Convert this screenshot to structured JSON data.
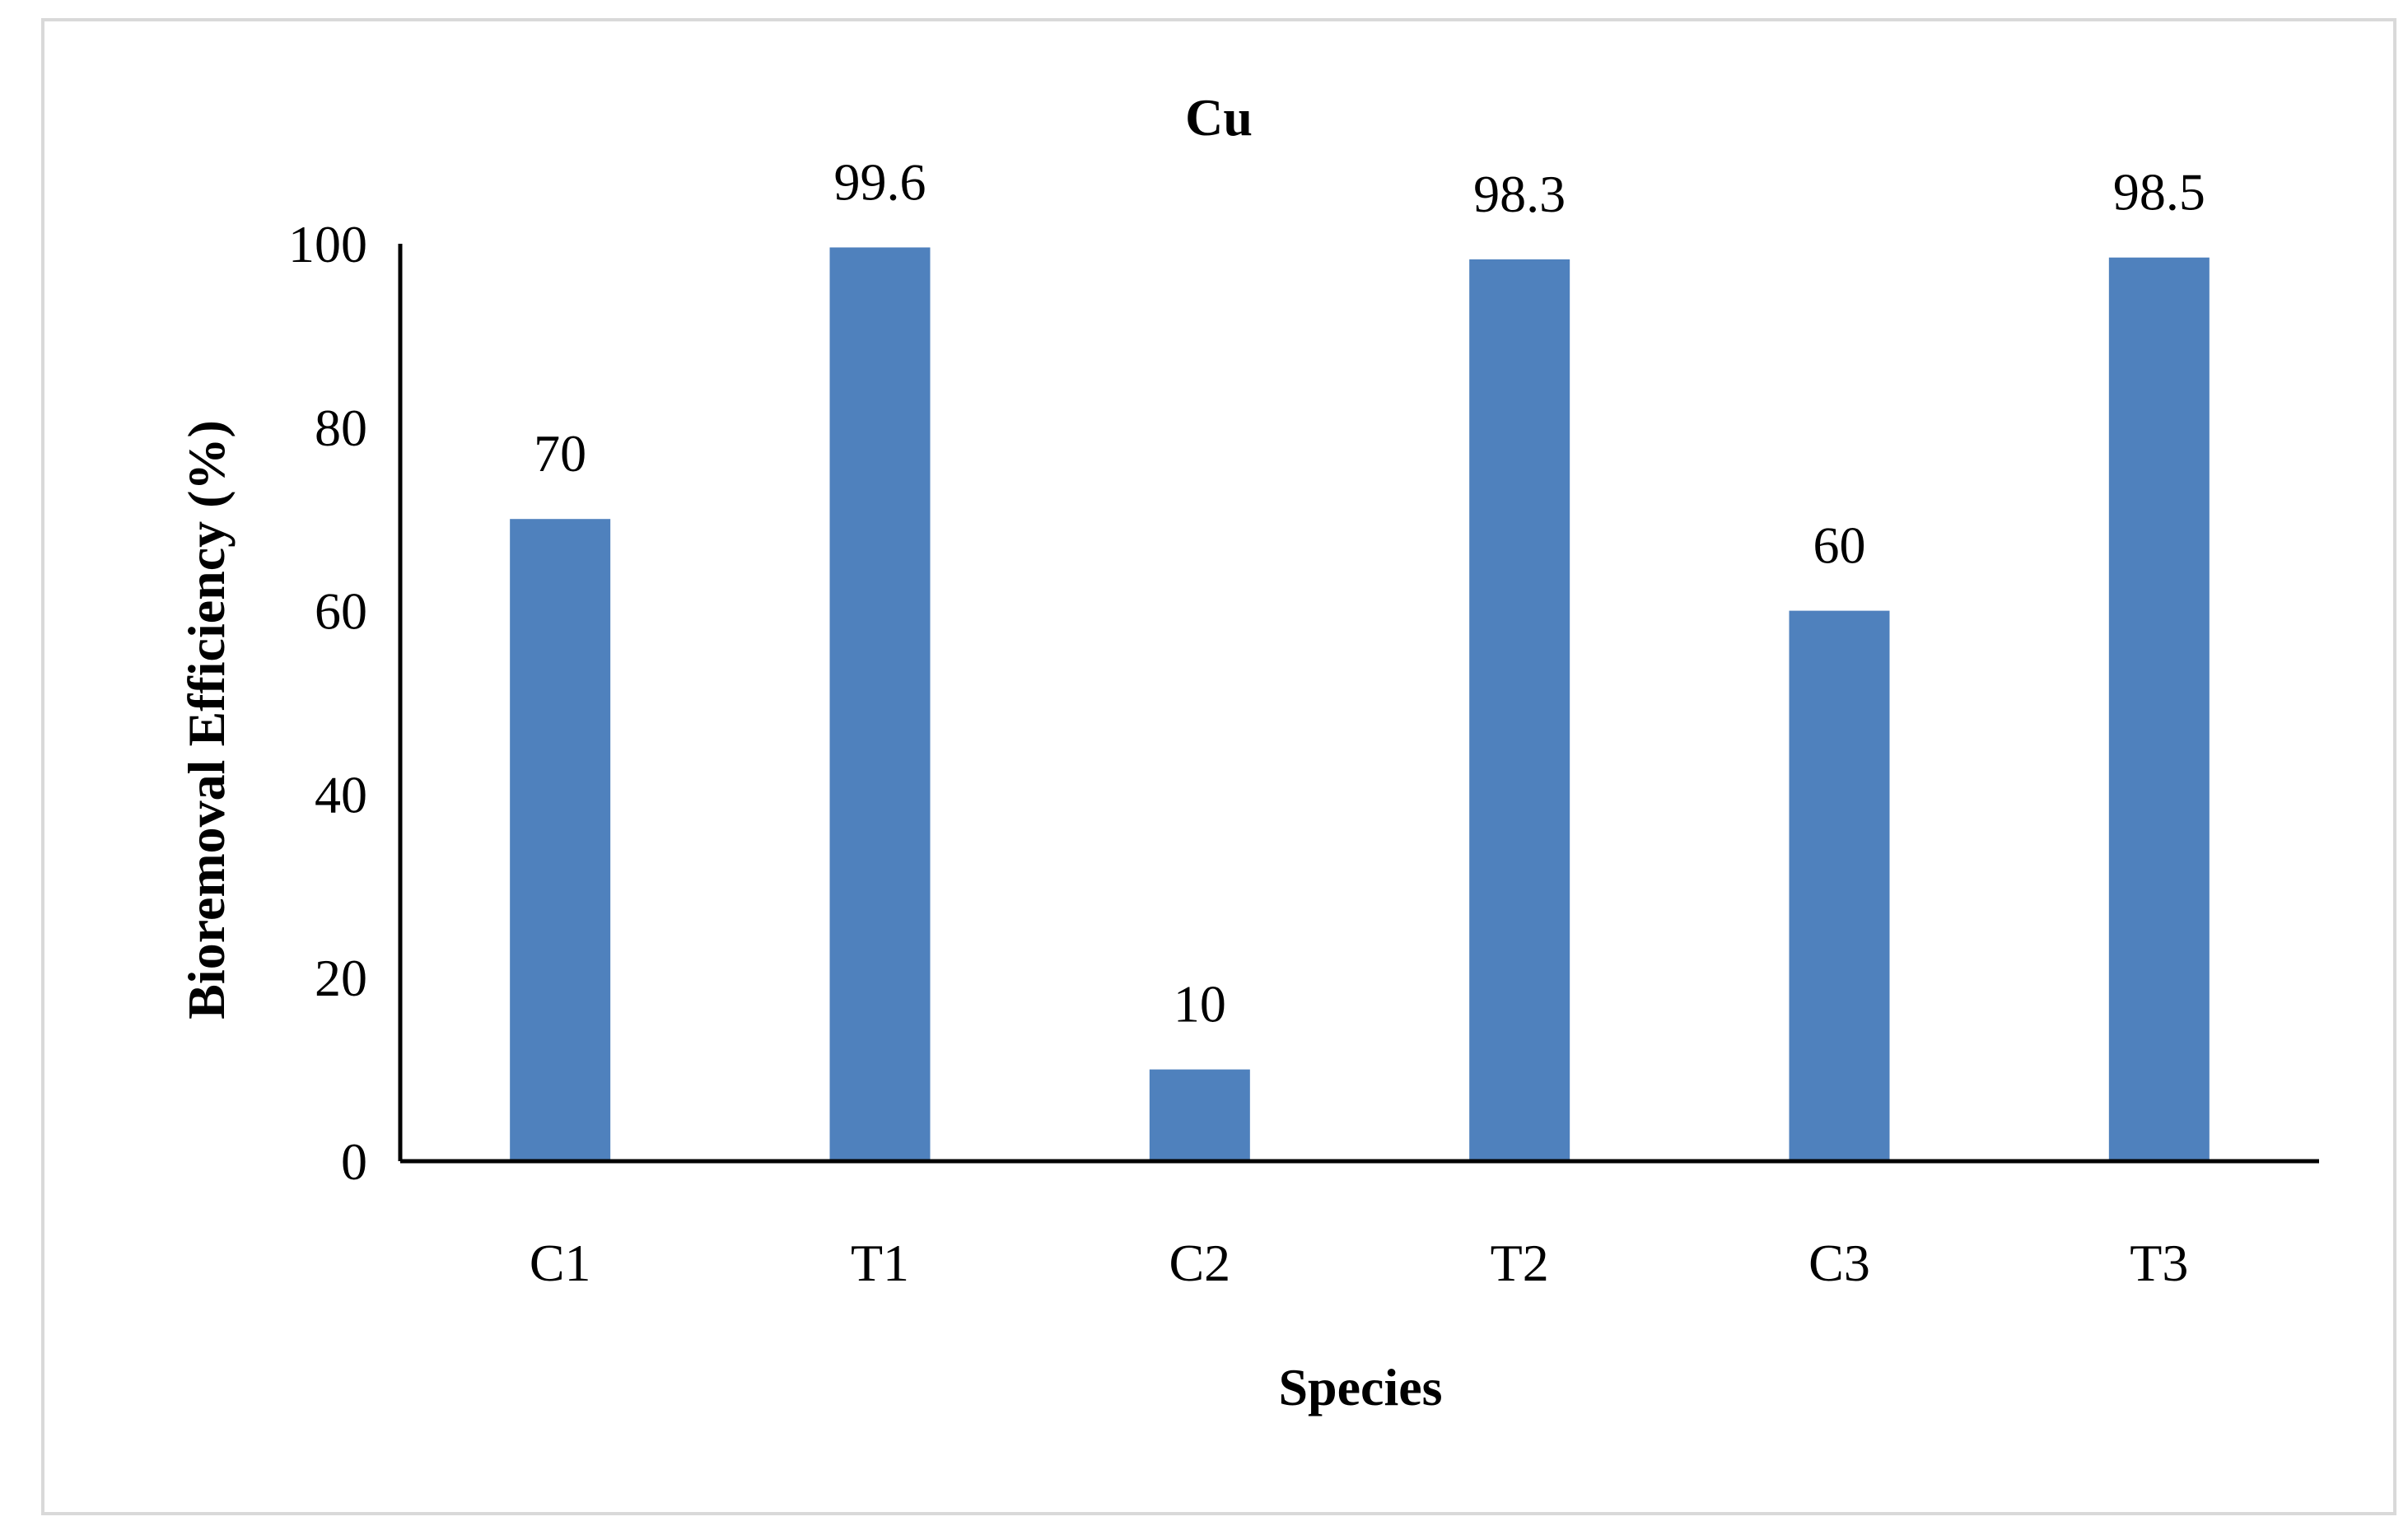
{
  "chart_data": {
    "type": "bar",
    "title": "Cu",
    "xlabel": "Species",
    "ylabel": "Bioremoval Efficiency (%)",
    "categories": [
      "C1",
      "T1",
      "C2",
      "T2",
      "C3",
      "T3"
    ],
    "values": [
      70,
      99.6,
      10,
      98.3,
      60,
      98.5
    ],
    "data_labels": [
      "70",
      "99.6",
      "10",
      "98.3",
      "60",
      "98.5"
    ],
    "ylim": [
      0,
      100
    ],
    "yticks": [
      0,
      20,
      40,
      60,
      80,
      100
    ],
    "ytick_labels": [
      "0",
      "20",
      "40",
      "60",
      "80",
      "100"
    ],
    "grid": false,
    "legend": "none",
    "bar_color": "#4f81bd",
    "axis_color": "#000000"
  }
}
